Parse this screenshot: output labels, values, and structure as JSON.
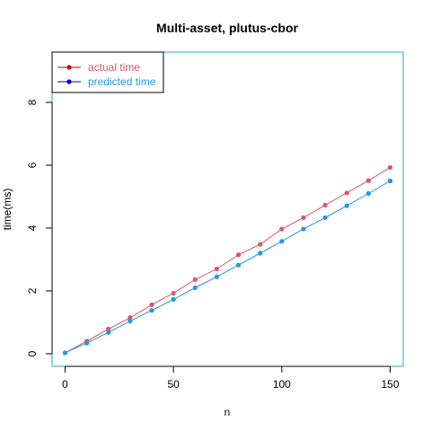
{
  "chart_data": {
    "type": "line",
    "title": "Multi-asset, plutus-cbor",
    "xlabel": "n",
    "ylabel": "time(ms)",
    "xlim": [
      -6,
      156
    ],
    "ylim": [
      -0.4,
      9.6
    ],
    "xticks": [
      0,
      50,
      100,
      150
    ],
    "yticks": [
      0,
      2,
      4,
      6,
      8
    ],
    "x": [
      0,
      10,
      20,
      30,
      40,
      50,
      60,
      70,
      80,
      90,
      100,
      110,
      120,
      130,
      140,
      150
    ],
    "series": [
      {
        "name": "actual time",
        "color": "#df536b",
        "legend_color": "#cc0000",
        "values": [
          0.03,
          0.4,
          0.79,
          1.15,
          1.56,
          1.93,
          2.36,
          2.7,
          3.15,
          3.48,
          3.97,
          4.33,
          4.73,
          5.12,
          5.51,
          5.93
        ]
      },
      {
        "name": "predicted time",
        "color": "#2297e6",
        "legend_color": "#0000cc",
        "values": [
          0.03,
          0.34,
          0.68,
          1.04,
          1.38,
          1.73,
          2.1,
          2.45,
          2.82,
          3.2,
          3.58,
          3.97,
          4.33,
          4.71,
          5.1,
          5.5
        ]
      }
    ],
    "legend_position": "top-left",
    "grid": false,
    "frame_color": "#29a3cc"
  }
}
